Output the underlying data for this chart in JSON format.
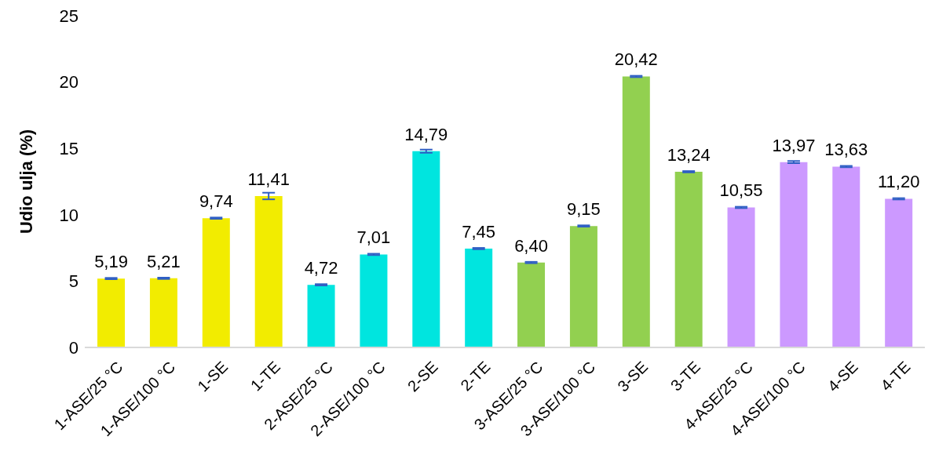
{
  "chart_data": {
    "type": "bar",
    "ylabel": "Udio ulja (%)",
    "categories": [
      "1-ASE/25 °C",
      "1-ASE/100 °C",
      "1-SE",
      "1-TE",
      "2-ASE/25 °C",
      "2-ASE/100 °C",
      "2-SE",
      "2-TE",
      "3-ASE/25 °C",
      "3-ASE/100 °C",
      "3-SE",
      "3-TE",
      "4-ASE/25 °C",
      "4-ASE/100 °C",
      "4-SE",
      "4-TE"
    ],
    "values": [
      5.19,
      5.21,
      9.74,
      11.41,
      4.72,
      7.01,
      14.79,
      7.45,
      6.4,
      9.15,
      20.42,
      13.24,
      10.55,
      13.97,
      13.63,
      11.2
    ],
    "value_labels": [
      "5,19",
      "5,21",
      "9,74",
      "11,41",
      "4,72",
      "7,01",
      "14,79",
      "7,45",
      "6,40",
      "9,15",
      "20,42",
      "13,24",
      "10,55",
      "13,97",
      "13,63",
      "11,20"
    ],
    "errors": [
      0.05,
      0.05,
      0.05,
      0.25,
      0.05,
      0.05,
      0.12,
      0.05,
      0.05,
      0.05,
      0.05,
      0.05,
      0.05,
      0.08,
      0.05,
      0.05
    ],
    "colors": [
      "#f2ec00",
      "#f2ec00",
      "#f2ec00",
      "#f2ec00",
      "#00e5df",
      "#00e5df",
      "#00e5df",
      "#00e5df",
      "#92d050",
      "#92d050",
      "#92d050",
      "#92d050",
      "#cc99ff",
      "#cc99ff",
      "#cc99ff",
      "#cc99ff"
    ],
    "ylim": [
      0,
      25
    ],
    "yticks": [
      0,
      5,
      10,
      15,
      20,
      25
    ],
    "grid": false,
    "legend": false
  }
}
